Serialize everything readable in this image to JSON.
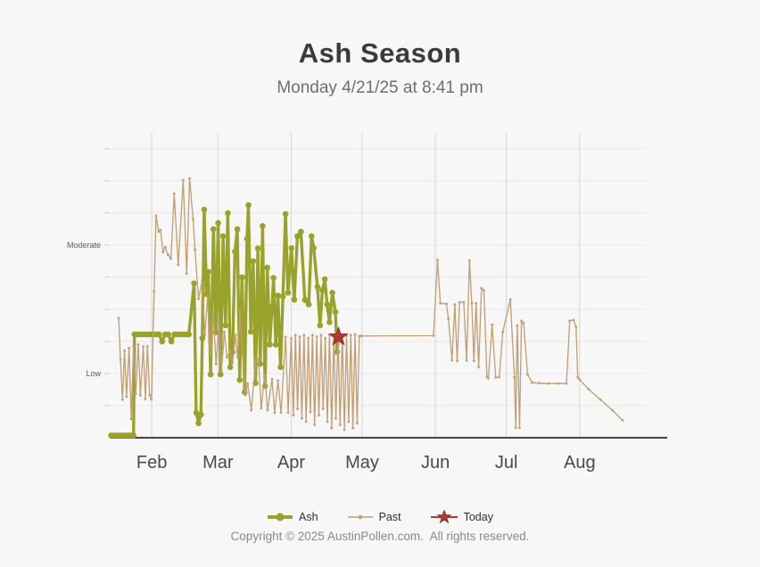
{
  "header": {
    "title": "Ash Season",
    "subtitle": "Monday 4/21/25 at 8:41 pm"
  },
  "footer": {
    "copyright": "Copyright © 2025 AustinPollen.com.  All rights reserved."
  },
  "colors": {
    "ash": "#99a22a",
    "past": "#c29d72",
    "today_fill": "#b03a2e",
    "today_stroke": "#8f2f26",
    "grid_horizontal": "#e8e8e8",
    "grid_vertical": "#d8d8d8",
    "axis_line": "#454545",
    "tick_mark": "#c8c8c8",
    "month_label": "#4a4a4a",
    "level_label": "#5a5a5a",
    "background": "#f7f7f7"
  },
  "legend": {
    "items": [
      {
        "id": "ash",
        "label": "Ash"
      },
      {
        "id": "past",
        "label": "Past"
      },
      {
        "id": "today",
        "label": "Today"
      }
    ]
  },
  "chart_data": {
    "type": "line",
    "title": "Ash Season",
    "x_unit": "day_of_year",
    "y_unit": "pollen_level_index",
    "x_domain": [
      14.6,
      241
    ],
    "y_domain": [
      0,
      9.5
    ],
    "grid": true,
    "legend_position": "bottom",
    "x_ticks": [
      {
        "doy": 32,
        "label": "Feb"
      },
      {
        "doy": 60,
        "label": "Mar"
      },
      {
        "doy": 91,
        "label": "Apr"
      },
      {
        "doy": 121,
        "label": "May"
      },
      {
        "doy": 152,
        "label": "Jun"
      },
      {
        "doy": 182,
        "label": "Jul"
      },
      {
        "doy": 213,
        "label": "Aug"
      }
    ],
    "y_gridline_values": [
      1,
      2,
      3,
      4,
      5,
      6,
      7,
      8,
      9
    ],
    "y_tick_labels": [
      {
        "value": 2,
        "label": "Low"
      },
      {
        "value": 6,
        "label": "Moderate"
      }
    ],
    "series": [
      {
        "name": "Ash",
        "marker": "circle",
        "points": [
          [
            14.8,
            0.07
          ],
          [
            16,
            0.07
          ],
          [
            17.2,
            0.07
          ],
          [
            18.4,
            0.07
          ],
          [
            19.6,
            0.07
          ],
          [
            20.8,
            0.07
          ],
          [
            22,
            0.07
          ],
          [
            23.2,
            0.07
          ],
          [
            24.3,
            0.07
          ],
          [
            24.7,
            3.22
          ],
          [
            26,
            3.22
          ],
          [
            27.3,
            3.22
          ],
          [
            28.6,
            3.22
          ],
          [
            29.9,
            3.22
          ],
          [
            31.2,
            3.22
          ],
          [
            32.5,
            3.22
          ],
          [
            33.8,
            3.22
          ],
          [
            35.1,
            3.22
          ],
          [
            36.4,
            3.0
          ],
          [
            37.7,
            3.22
          ],
          [
            39,
            3.22
          ],
          [
            40.3,
            3.0
          ],
          [
            41.6,
            3.22
          ],
          [
            42.9,
            3.22
          ],
          [
            44.2,
            3.22
          ],
          [
            45.5,
            3.22
          ],
          [
            46.8,
            3.22
          ],
          [
            47.7,
            3.22
          ],
          [
            49.9,
            4.81
          ],
          [
            50.8,
            0.78
          ],
          [
            51.8,
            0.45
          ],
          [
            52.8,
            0.72
          ],
          [
            53.4,
            3.1
          ],
          [
            54.2,
            7.11
          ],
          [
            55.2,
            4.47
          ],
          [
            55.9,
            5.17
          ],
          [
            56.9,
            1.97
          ],
          [
            58.1,
            6.5
          ],
          [
            59.1,
            3.28
          ],
          [
            60.1,
            6.69
          ],
          [
            61.1,
            1.97
          ],
          [
            62.2,
            6.28
          ],
          [
            63.2,
            3.5
          ],
          [
            64.2,
            7.0
          ],
          [
            65.2,
            2.2
          ],
          [
            66.2,
            2.67
          ],
          [
            67.2,
            5.8
          ],
          [
            68.2,
            6.5
          ],
          [
            69.2,
            1.8
          ],
          [
            70.2,
            5.0
          ],
          [
            71.3,
            1.42
          ],
          [
            72.3,
            6.2
          ],
          [
            72.9,
            7.25
          ],
          [
            73.9,
            3.3
          ],
          [
            74.9,
            5.5
          ],
          [
            75.9,
            1.7
          ],
          [
            76.9,
            5.9
          ],
          [
            77.9,
            2.3
          ],
          [
            78.9,
            6.6
          ],
          [
            79.9,
            1.61
          ],
          [
            80.9,
            5.3
          ],
          [
            81.9,
            2.9
          ],
          [
            82.9,
            4.1
          ],
          [
            83.5,
            4.98
          ],
          [
            84.5,
            2.9
          ],
          [
            85.4,
            4.43
          ],
          [
            86.5,
            2.2
          ],
          [
            87.5,
            4.4
          ],
          [
            88.6,
            6.97
          ],
          [
            89.6,
            4.52
          ],
          [
            91.1,
            5.91
          ],
          [
            92.3,
            4.3
          ],
          [
            93.6,
            6.28
          ],
          [
            95.1,
            6.42
          ],
          [
            96.8,
            4.29
          ],
          [
            98.4,
            4.15
          ],
          [
            99.6,
            6.28
          ],
          [
            100.5,
            5.91
          ],
          [
            102.1,
            4.7
          ],
          [
            103.2,
            3.5
          ],
          [
            104.2,
            4.6
          ],
          [
            105.2,
            4.94
          ],
          [
            106.2,
            4.15
          ],
          [
            107.2,
            3.6
          ],
          [
            108.4,
            4.52
          ],
          [
            109.7,
            3.92
          ],
          [
            110.4,
            2.67
          ],
          [
            111,
            3.14
          ]
        ]
      },
      {
        "name": "Past",
        "marker": "dot",
        "points": [
          [
            18,
            3.73
          ],
          [
            18.8,
            2.43
          ],
          [
            19.6,
            1.19
          ],
          [
            20.5,
            2.71
          ],
          [
            21.3,
            1.28
          ],
          [
            22.4,
            2.79
          ],
          [
            23.3,
            0.58
          ],
          [
            24.3,
            2.85
          ],
          [
            25.2,
            1.37
          ],
          [
            26.3,
            2.9
          ],
          [
            27.2,
            1.32
          ],
          [
            28.4,
            2.84
          ],
          [
            29.3,
            1.21
          ],
          [
            30.2,
            2.85
          ],
          [
            31.1,
            1.33
          ],
          [
            31.9,
            1.19
          ],
          [
            33,
            4.56
          ],
          [
            33.8,
            6.92
          ],
          [
            34.9,
            6.42
          ],
          [
            35.7,
            6.47
          ],
          [
            36.8,
            5.78
          ],
          [
            37.7,
            5.94
          ],
          [
            38.9,
            5.7
          ],
          [
            40.1,
            5.58
          ],
          [
            41.5,
            7.61
          ],
          [
            43.2,
            5.39
          ],
          [
            45.3,
            8.03
          ],
          [
            46.8,
            5.11
          ],
          [
            48,
            8.08
          ],
          [
            49.5,
            6.8
          ],
          [
            50.3,
            5.86
          ],
          [
            51.8,
            4.33
          ],
          [
            53.3,
            4.9
          ],
          [
            54.5,
            3.2
          ],
          [
            55.6,
            4.4
          ],
          [
            56.8,
            2.6
          ],
          [
            58,
            3.9
          ],
          [
            59.2,
            2.3
          ],
          [
            60.4,
            3.6
          ],
          [
            61.5,
            2.1
          ],
          [
            62.7,
            3.3
          ],
          [
            63.8,
            2.5
          ],
          [
            65.2,
            2.72
          ],
          [
            66.2,
            2.33
          ],
          [
            67.4,
            3.2
          ],
          [
            68.3,
            2.5
          ],
          [
            69.3,
            3.97
          ],
          [
            70.4,
            2.6
          ],
          [
            71.6,
            1.33
          ],
          [
            72.6,
            1.69
          ],
          [
            74.1,
            0.86
          ],
          [
            76,
            2.44
          ],
          [
            77.2,
            2.44
          ],
          [
            78.3,
            0.92
          ],
          [
            79.8,
            1.97
          ],
          [
            81,
            0.86
          ],
          [
            82.9,
            1.83
          ],
          [
            84,
            0.78
          ],
          [
            85.4,
            1.78
          ],
          [
            86.7,
            0.78
          ],
          [
            88.6,
            3.14
          ],
          [
            89.7,
            0.78
          ],
          [
            91,
            3.1
          ],
          [
            91.9,
            0.7
          ],
          [
            92.8,
            3.2
          ],
          [
            93.7,
            0.9
          ],
          [
            94.6,
            3.15
          ],
          [
            95.5,
            0.6
          ],
          [
            96.4,
            3.2
          ],
          [
            97.3,
            0.5
          ],
          [
            98.2,
            3.1
          ],
          [
            99.1,
            0.8
          ],
          [
            100,
            3.2
          ],
          [
            100.9,
            0.4
          ],
          [
            101.8,
            3.15
          ],
          [
            102.7,
            0.7
          ],
          [
            103.6,
            3.2
          ],
          [
            104.5,
            0.9
          ],
          [
            105.4,
            3.1
          ],
          [
            106.3,
            0.5
          ],
          [
            107.2,
            3.2
          ],
          [
            108.1,
            0.3
          ],
          [
            109,
            3.15
          ],
          [
            109.9,
            0.6
          ],
          [
            110.8,
            3.2
          ],
          [
            111.7,
            0.4
          ],
          [
            112.6,
            3.2
          ],
          [
            113.5,
            0.25
          ],
          [
            114.4,
            3.18
          ],
          [
            115.3,
            0.5
          ],
          [
            116.2,
            3.2
          ],
          [
            117.1,
            0.3
          ],
          [
            118,
            3.22
          ],
          [
            118.9,
            0.45
          ],
          [
            119.8,
            3.17
          ],
          [
            120.6,
            3.17
          ],
          [
            151.2,
            3.18
          ],
          [
            152.9,
            5.54
          ],
          [
            154.1,
            4.19
          ],
          [
            156.7,
            4.17
          ],
          [
            157.5,
            3.71
          ],
          [
            159,
            2.41
          ],
          [
            160.2,
            4.15
          ],
          [
            161.2,
            2.39
          ],
          [
            162.2,
            4.22
          ],
          [
            164,
            4.22
          ],
          [
            165.2,
            2.41
          ],
          [
            166.4,
            5.52
          ],
          [
            167.4,
            4.19
          ],
          [
            168.3,
            2.4
          ],
          [
            169.2,
            4.19
          ],
          [
            170.3,
            2.2
          ],
          [
            171.5,
            4.66
          ],
          [
            172.5,
            4.59
          ],
          [
            173.8,
            1.9
          ],
          [
            174.4,
            1.85
          ],
          [
            176,
            3.52
          ],
          [
            177.5,
            1.88
          ],
          [
            179,
            1.89
          ],
          [
            180.5,
            3.3
          ],
          [
            183.7,
            4.31
          ],
          [
            185.4,
            1.88
          ],
          [
            186,
            0.31
          ],
          [
            186.6,
            3.5
          ],
          [
            187.6,
            0.31
          ],
          [
            188.4,
            3.64
          ],
          [
            189.3,
            3.57
          ],
          [
            191,
            1.97
          ],
          [
            192.9,
            1.72
          ],
          [
            196,
            1.7
          ],
          [
            200,
            1.69
          ],
          [
            204,
            1.69
          ],
          [
            207.4,
            1.69
          ],
          [
            208.8,
            3.64
          ],
          [
            210.4,
            3.67
          ],
          [
            211.5,
            3.45
          ],
          [
            212.2,
            1.88
          ],
          [
            213,
            1.81
          ],
          [
            216.8,
            1.51
          ],
          [
            221.8,
            1.19
          ],
          [
            226.8,
            0.86
          ],
          [
            231.2,
            0.54
          ]
        ]
      },
      {
        "name": "Today",
        "marker": "star",
        "points": [
          [
            111,
            3.14
          ]
        ]
      }
    ]
  }
}
